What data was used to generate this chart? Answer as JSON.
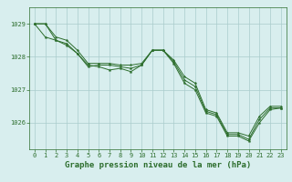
{
  "background_color": "#d8eeee",
  "grid_color": "#aacccc",
  "line_color": "#2d6e2d",
  "marker_color": "#2d6e2d",
  "xlabel": "Graphe pression niveau de la mer (hPa)",
  "xlabel_fontsize": 6.5,
  "tick_fontsize": 5,
  "ylim": [
    1025.2,
    1029.5
  ],
  "xlim": [
    -0.5,
    23.5
  ],
  "yticks": [
    1026,
    1027,
    1028,
    1029
  ],
  "xticks": [
    0,
    1,
    2,
    3,
    4,
    5,
    6,
    7,
    8,
    9,
    10,
    11,
    12,
    13,
    14,
    15,
    16,
    17,
    18,
    19,
    20,
    21,
    22,
    23
  ],
  "series1": [
    1029.0,
    1029.0,
    1028.6,
    1028.5,
    1028.2,
    1027.8,
    1027.8,
    1027.8,
    1027.75,
    1027.75,
    1027.8,
    1028.2,
    1028.2,
    1027.9,
    1027.4,
    1027.2,
    1026.4,
    1026.3,
    1025.7,
    1025.7,
    1025.6,
    1026.2,
    1026.5,
    1026.5
  ],
  "series2": [
    1029.0,
    1029.0,
    1028.5,
    1028.4,
    1028.1,
    1027.7,
    1027.75,
    1027.75,
    1027.7,
    1027.65,
    1027.75,
    1028.2,
    1028.2,
    1027.85,
    1027.3,
    1027.1,
    1026.35,
    1026.25,
    1025.65,
    1025.65,
    1025.5,
    1026.1,
    1026.45,
    1026.45
  ],
  "series3": [
    1029.0,
    1028.6,
    1028.5,
    1028.35,
    1028.1,
    1027.75,
    1027.7,
    1027.6,
    1027.65,
    1027.55,
    1027.75,
    1028.2,
    1028.2,
    1027.8,
    1027.2,
    1027.0,
    1026.3,
    1026.2,
    1025.6,
    1025.6,
    1025.45,
    1026.0,
    1026.4,
    1026.45
  ],
  "marker_size": 2.0,
  "line_width": 0.7
}
